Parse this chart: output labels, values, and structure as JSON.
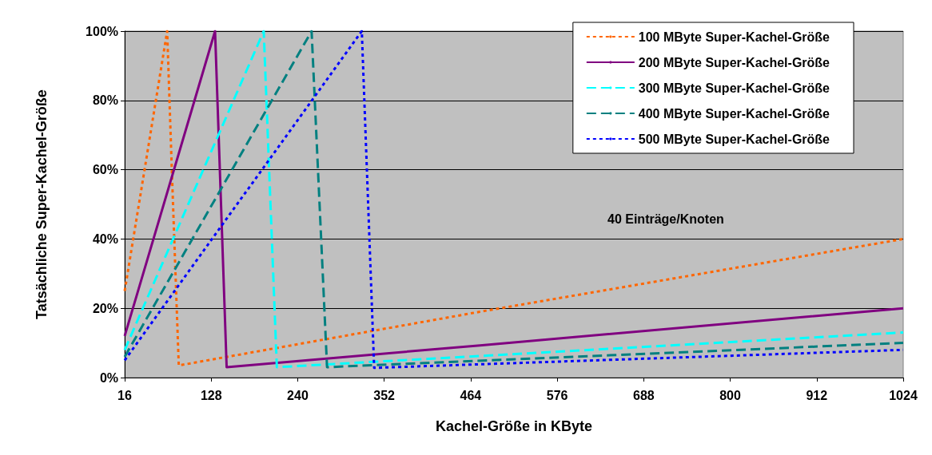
{
  "chart_data": {
    "type": "line",
    "xlabel": "Kachel-Größe in KByte",
    "ylabel": "Tatsächliche Super-Kachel-Größe",
    "annotations": [
      "40 Einträge/Knoten"
    ],
    "xlim": [
      16,
      1024
    ],
    "xticks": [
      16,
      128,
      240,
      352,
      464,
      576,
      688,
      800,
      912,
      1024
    ],
    "ylim": [
      0,
      100
    ],
    "yticks": [
      {
        "value": 0,
        "label": "0%"
      },
      {
        "value": 20,
        "label": "20%"
      },
      {
        "value": 40,
        "label": "40%"
      },
      {
        "value": 60,
        "label": "60%"
      },
      {
        "value": 80,
        "label": "80%"
      },
      {
        "value": 100,
        "label": "100%"
      }
    ],
    "grid": "y",
    "legend": "top right",
    "marker": "none",
    "series": [
      {
        "name": "100 MByte Super-Kachel-Größe",
        "color": "#ff6600",
        "line_style": "dotted",
        "x": [
          16,
          41,
          71,
          77,
          86,
          476,
          1024
        ],
        "values": [
          25,
          59,
          100,
          60,
          3.5,
          19,
          40
        ]
      },
      {
        "name": "200 MByte Super-Kachel-Größe",
        "color": "#800080",
        "line_style": "solid",
        "x": [
          16,
          133,
          148,
          476,
          1024
        ],
        "values": [
          12,
          100,
          3,
          9.3,
          20
        ]
      },
      {
        "name": "300 MByte Super-Kachel-Größe",
        "color": "#00ffff",
        "line_style": "dashed",
        "x": [
          16,
          196,
          213,
          1024
        ],
        "values": [
          8,
          100,
          3,
          13
        ]
      },
      {
        "name": "400 MByte Super-Kachel-Größe",
        "color": "#008080",
        "line_style": "dashed",
        "x": [
          16,
          258,
          278,
          1024
        ],
        "values": [
          6,
          100,
          3,
          10
        ]
      },
      {
        "name": "500 MByte Super-Kachel-Größe",
        "color": "#0000ff",
        "line_style": "dotted",
        "x": [
          16,
          323,
          339,
          1024
        ],
        "values": [
          5,
          100,
          2.8,
          8
        ]
      }
    ]
  }
}
